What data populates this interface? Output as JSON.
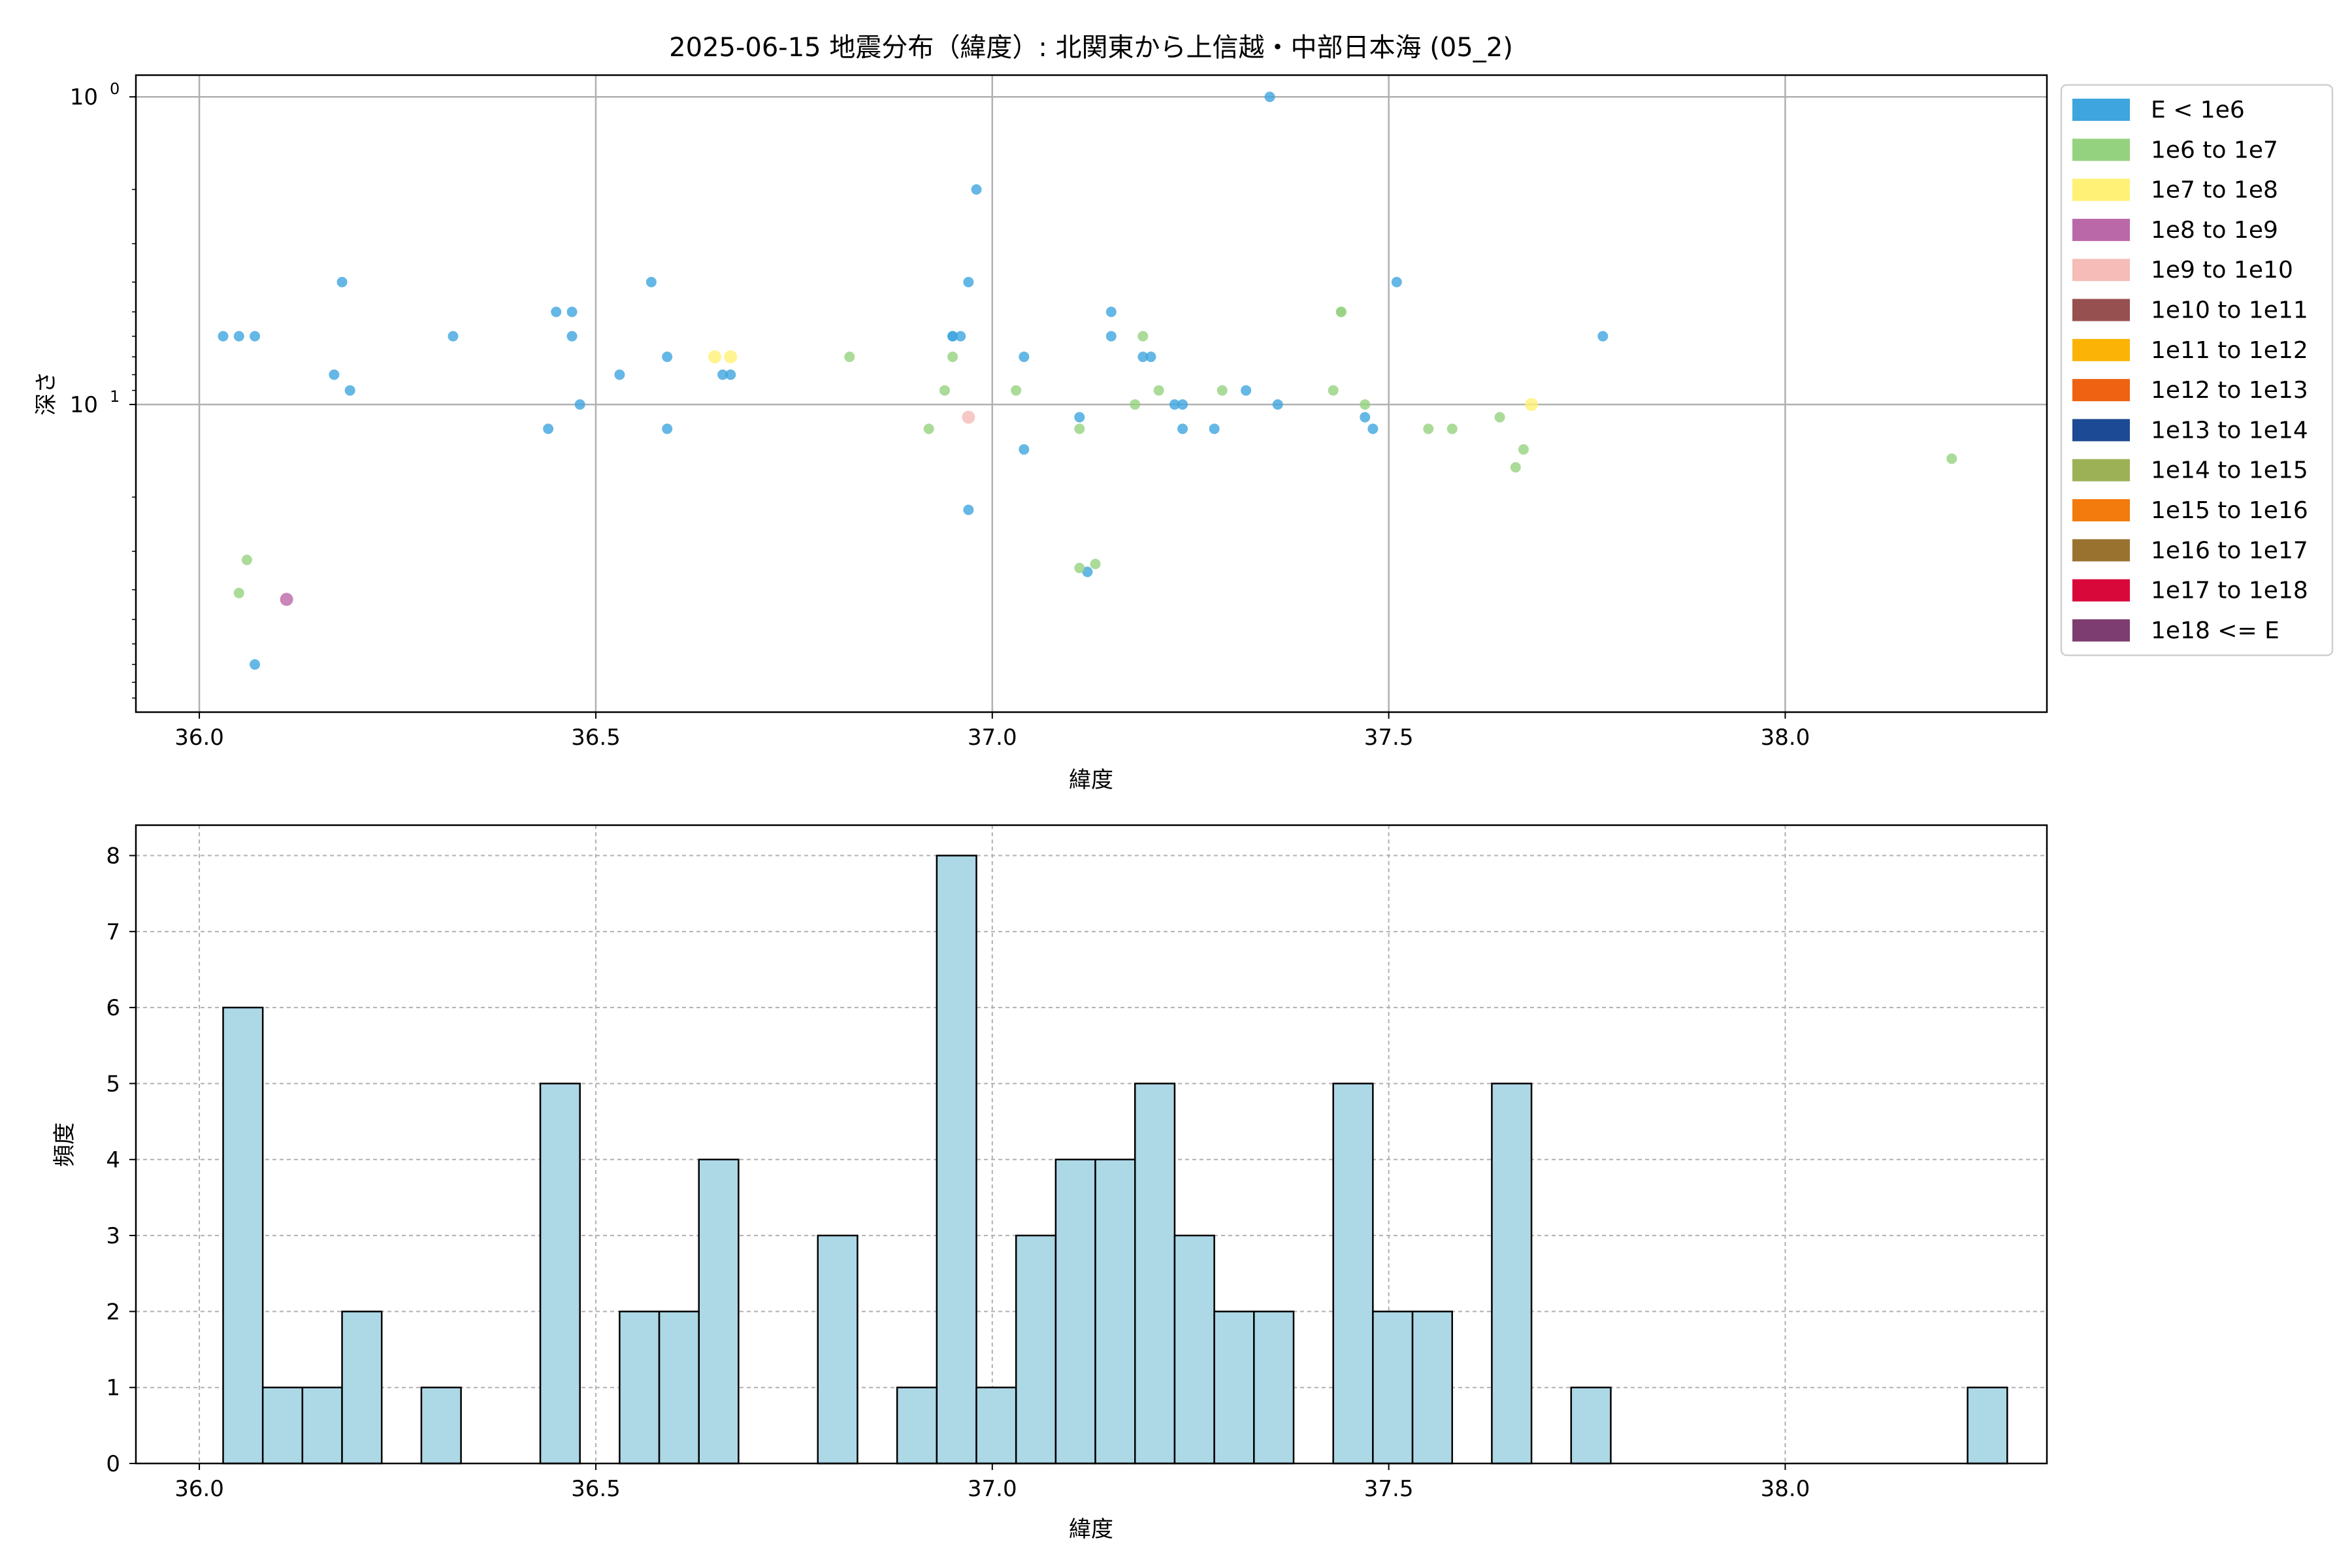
{
  "title": "2025-06-15 地震分布（緯度）: 北関東から上信越・中部日本海 (05_2)",
  "chart_data": [
    {
      "type": "scatter",
      "xlabel": "緯度",
      "ylabel": "深さ",
      "yscale": "log",
      "y_inverted": true,
      "xlim": [
        35.92,
        38.33
      ],
      "ylim": [
        100,
        0.85
      ],
      "x_ticks": [
        "36.0",
        "36.5",
        "37.0",
        "37.5",
        "38.0"
      ],
      "x_tick_values": [
        36.0,
        36.5,
        37.0,
        37.5,
        38.0
      ],
      "y_ticks": [
        {
          "base": "10",
          "exp": "0",
          "value": 1
        },
        {
          "base": "10",
          "exp": "1",
          "value": 10
        }
      ],
      "grid": true,
      "legend_placement": "outside-right",
      "legend": [
        {
          "label": "E < 1e6",
          "color": "#3ea5de"
        },
        {
          "label": "1e6 to 1e7",
          "color": "#95d27f"
        },
        {
          "label": "1e7 to 1e8",
          "color": "#fff176"
        },
        {
          "label": "1e8 to 1e9",
          "color": "#ba68a8"
        },
        {
          "label": "1e9 to 1e10",
          "color": "#f5bcb8"
        },
        {
          "label": "1e10 to 1e11",
          "color": "#975050"
        },
        {
          "label": "1e11 to 1e12",
          "color": "#fbb405"
        },
        {
          "label": "1e12 to 1e13",
          "color": "#ee6211"
        },
        {
          "label": "1e13 to 1e14",
          "color": "#1c4a94"
        },
        {
          "label": "1e14 to 1e15",
          "color": "#9cb155"
        },
        {
          "label": "1e15 to 1e16",
          "color": "#f37a0d"
        },
        {
          "label": "1e16 to 1e17",
          "color": "#9a7230"
        },
        {
          "label": "1e17 to 1e18",
          "color": "#d9083b"
        },
        {
          "label": "1e18 <= E",
          "color": "#7d3d70"
        }
      ],
      "series": [
        {
          "class": 0,
          "color": "#3ea5de",
          "points": [
            [
              36.03,
              6
            ],
            [
              36.05,
              6
            ],
            [
              36.07,
              6
            ],
            [
              36.07,
              70
            ],
            [
              36.17,
              8
            ],
            [
              36.18,
              4
            ],
            [
              36.19,
              9
            ],
            [
              36.32,
              6
            ],
            [
              36.44,
              12
            ],
            [
              36.45,
              5
            ],
            [
              36.47,
              5
            ],
            [
              36.47,
              6
            ],
            [
              36.48,
              10
            ],
            [
              36.53,
              8
            ],
            [
              36.57,
              4
            ],
            [
              36.59,
              7
            ],
            [
              36.59,
              12
            ],
            [
              36.66,
              8
            ],
            [
              36.67,
              8
            ],
            [
              36.95,
              6
            ],
            [
              36.95,
              6
            ],
            [
              36.96,
              6
            ],
            [
              36.97,
              4
            ],
            [
              36.97,
              22
            ],
            [
              36.98,
              2
            ],
            [
              37.04,
              7
            ],
            [
              37.04,
              14
            ],
            [
              37.11,
              11
            ],
            [
              37.12,
              35
            ],
            [
              37.15,
              5
            ],
            [
              37.15,
              6
            ],
            [
              37.19,
              7
            ],
            [
              37.2,
              7
            ],
            [
              37.23,
              10
            ],
            [
              37.24,
              10
            ],
            [
              37.24,
              12
            ],
            [
              37.28,
              12
            ],
            [
              37.32,
              9
            ],
            [
              37.35,
              1
            ],
            [
              37.36,
              10
            ],
            [
              37.47,
              11
            ],
            [
              37.48,
              12
            ],
            [
              37.51,
              4
            ],
            [
              37.77,
              6
            ]
          ]
        },
        {
          "class": 1,
          "color": "#95d27f",
          "points": [
            [
              36.05,
              41
            ],
            [
              36.06,
              32
            ],
            [
              36.82,
              7
            ],
            [
              36.92,
              12
            ],
            [
              36.94,
              9
            ],
            [
              36.95,
              7
            ],
            [
              37.03,
              9
            ],
            [
              37.11,
              34
            ],
            [
              37.11,
              12
            ],
            [
              37.13,
              33
            ],
            [
              37.18,
              10
            ],
            [
              37.19,
              6
            ],
            [
              37.21,
              9
            ],
            [
              37.29,
              9
            ],
            [
              37.43,
              9
            ],
            [
              37.44,
              5
            ],
            [
              37.44,
              5
            ],
            [
              37.47,
              10
            ],
            [
              37.55,
              12
            ],
            [
              37.58,
              12
            ],
            [
              37.64,
              11
            ],
            [
              37.66,
              16
            ],
            [
              37.67,
              14
            ],
            [
              38.21,
              15
            ]
          ]
        },
        {
          "class": 2,
          "color": "#fff176",
          "points": [
            [
              36.65,
              7
            ],
            [
              36.67,
              7
            ],
            [
              37.68,
              10
            ]
          ]
        },
        {
          "class": 3,
          "color": "#ba68a8",
          "points": [
            [
              36.11,
              43
            ]
          ]
        },
        {
          "class": 4,
          "color": "#f5bcb8",
          "points": [
            [
              36.97,
              11
            ]
          ]
        }
      ]
    },
    {
      "type": "bar",
      "xlabel": "緯度",
      "ylabel": "頻度",
      "xlim": [
        35.92,
        38.33
      ],
      "ylim": [
        0,
        8.4
      ],
      "x_ticks": [
        "36.0",
        "36.5",
        "37.0",
        "37.5",
        "38.0"
      ],
      "x_tick_values": [
        36.0,
        36.5,
        37.0,
        37.5,
        38.0
      ],
      "y_ticks": [
        "0",
        "1",
        "2",
        "3",
        "4",
        "5",
        "6",
        "7",
        "8"
      ],
      "grid": true,
      "bar_color": "#add8e6",
      "bin_start": 36.03,
      "bin_width": 0.05,
      "counts": [
        6,
        1,
        1,
        2,
        0,
        1,
        0,
        0,
        5,
        0,
        2,
        2,
        4,
        0,
        0,
        3,
        0,
        1,
        8,
        1,
        3,
        4,
        4,
        5,
        3,
        2,
        2,
        0,
        5,
        2,
        2,
        0,
        5,
        0,
        1,
        0,
        0,
        0,
        0,
        0,
        0,
        0,
        0,
        0,
        1
      ]
    }
  ]
}
